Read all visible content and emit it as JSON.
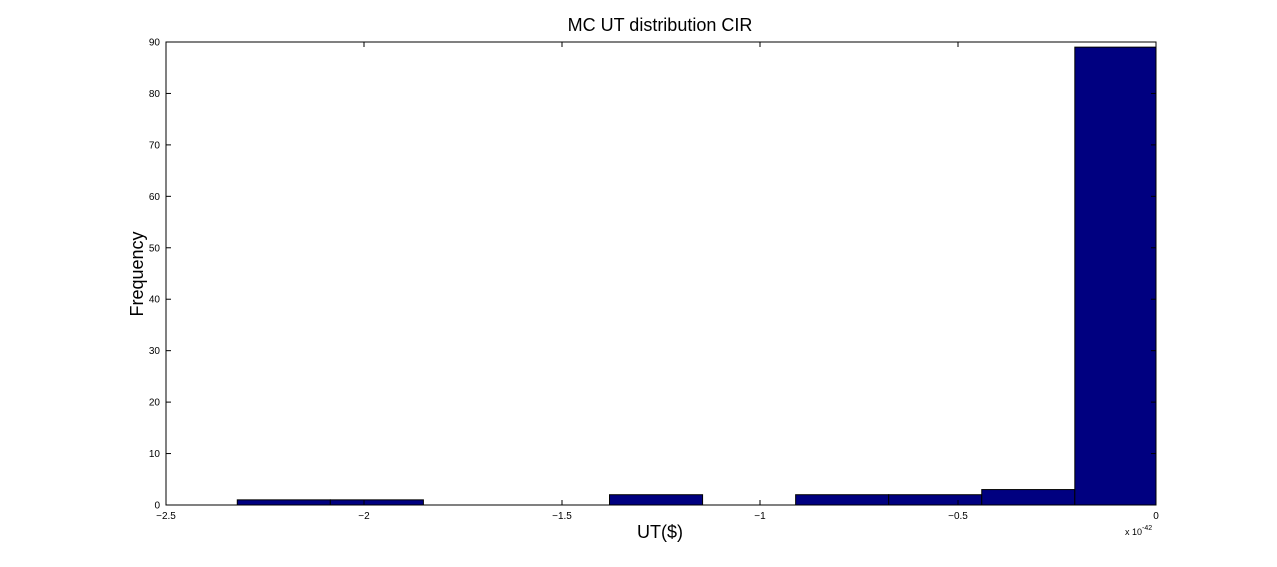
{
  "chart_data": {
    "type": "bar",
    "title": "MC UT distribution CIR",
    "xlabel": "UT($)",
    "ylabel": "Frequency",
    "x_exponent_label": "x 10",
    "x_exponent_power": "-42",
    "xlim": [
      -2.5,
      0
    ],
    "ylim": [
      0,
      90
    ],
    "xticks": [
      -2.5,
      -2,
      -1.5,
      -1,
      -0.5,
      0
    ],
    "xtick_labels": [
      "−2.5",
      "−2",
      "−1.5",
      "−1",
      "−0.5",
      "0"
    ],
    "yticks": [
      0,
      10,
      20,
      30,
      40,
      50,
      60,
      70,
      80,
      90
    ],
    "ytick_labels": [
      "0",
      "10",
      "20",
      "30",
      "40",
      "50",
      "60",
      "70",
      "80",
      "90"
    ],
    "bin_edges": [
      -2.32,
      -2.085,
      -1.85,
      -1.615,
      -1.38,
      -1.145,
      -0.91,
      -0.675,
      -0.44,
      -0.205,
      0.0
    ],
    "values": [
      1,
      1,
      0,
      0,
      2,
      0,
      2,
      2,
      3,
      89
    ],
    "grid": false,
    "bar_color": "#000080",
    "edge_color": "#000000"
  }
}
